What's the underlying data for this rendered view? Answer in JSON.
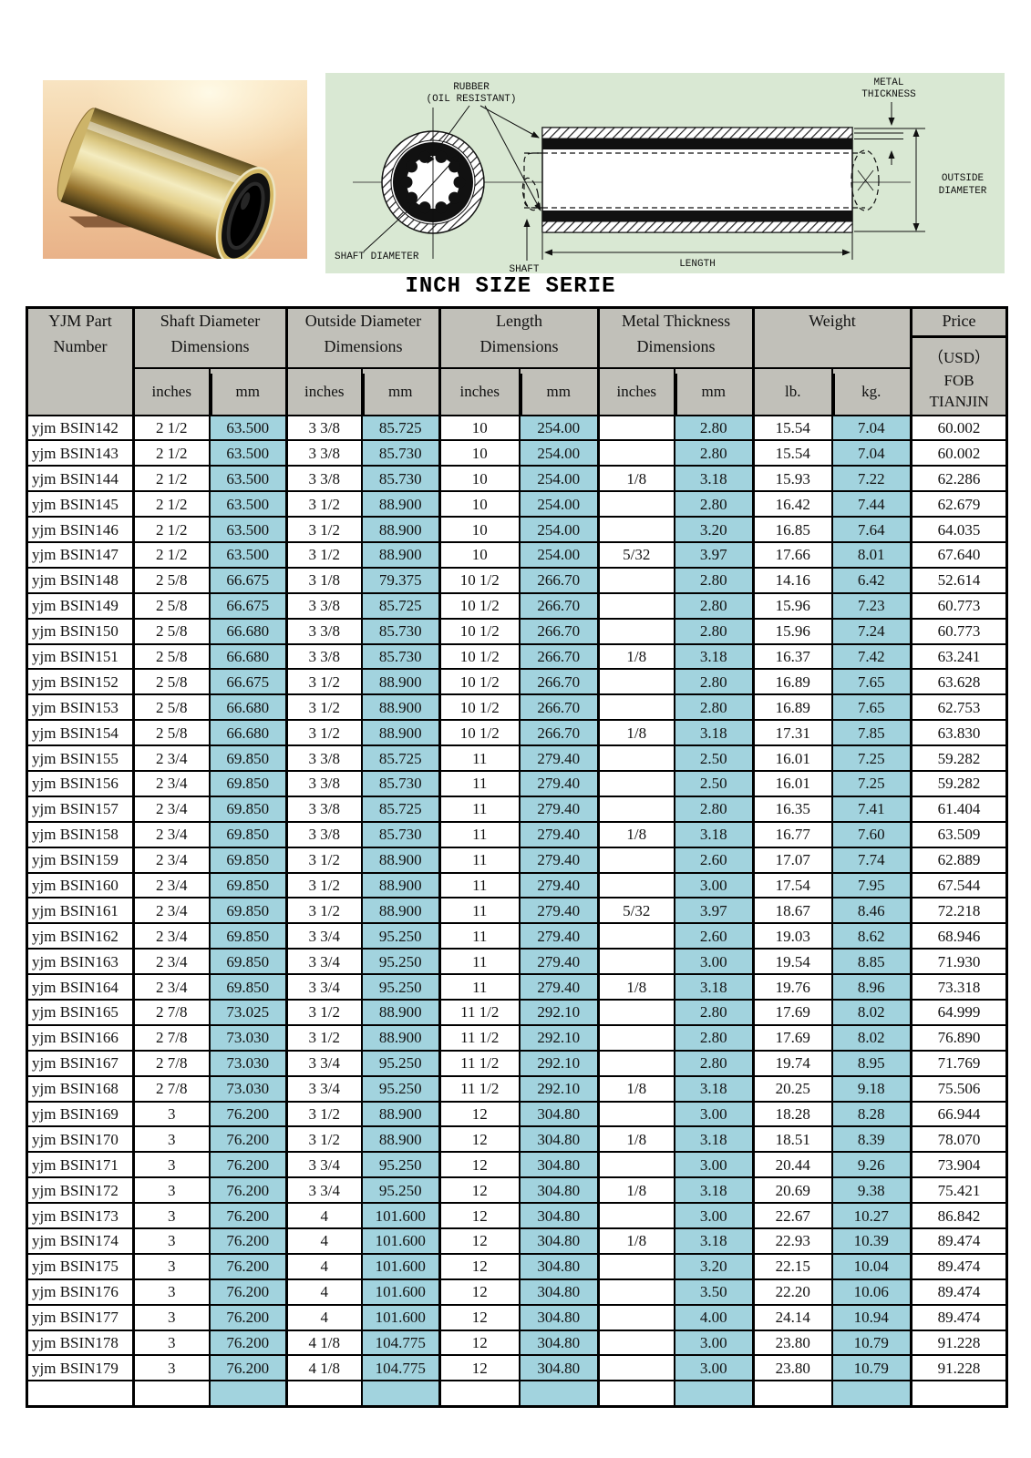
{
  "page": {
    "title": "INCH SIZE SERIE"
  },
  "colors": {
    "teal_cell": "#a2d3de",
    "header_grey": "#c1c0b9",
    "diagram_background": "#d9e8d3",
    "border": "#000000"
  },
  "diagram": {
    "labels": {
      "rubber": [
        "RUBBER",
        "(OIL RESISTANT)"
      ],
      "metal_thickness": [
        "METAL",
        "THICKNESS"
      ],
      "outside_diameter": [
        "OUTSIDE",
        "DIAMETER"
      ],
      "shaft_diameter": "SHAFT DIAMETER",
      "shaft": "SHAFT",
      "length": "LENGTH"
    }
  },
  "table": {
    "header": {
      "part_line1": "YJM Part",
      "part_line2": "Number",
      "groups": [
        {
          "label": "Shaft Diameter",
          "sub": "Dimensions",
          "units": [
            "inches",
            "mm"
          ]
        },
        {
          "label": "Outside Diameter",
          "sub": "Dimensions",
          "units": [
            "inches",
            "mm"
          ]
        },
        {
          "label": "Length",
          "sub": "Dimensions",
          "units": [
            "inches",
            "mm"
          ]
        },
        {
          "label": "Metal Thickness",
          "sub": "Dimensions",
          "units": [
            "inches",
            "mm"
          ]
        },
        {
          "label": "Weight",
          "sub": "",
          "units": [
            "lb.",
            "kg."
          ]
        }
      ],
      "price": {
        "label": "Price",
        "usd": "（USD）",
        "fob1": "FOB",
        "fob2": "TIANJIN"
      }
    },
    "rows": [
      [
        "yjm BSIN142",
        "2 1/2",
        "63.500",
        "3 3/8",
        "85.725",
        "10",
        "254.00",
        "",
        "2.80",
        "15.54",
        "7.04",
        "60.002"
      ],
      [
        "yjm BSIN143",
        "2 1/2",
        "63.500",
        "3 3/8",
        "85.730",
        "10",
        "254.00",
        "",
        "2.80",
        "15.54",
        "7.04",
        "60.002"
      ],
      [
        "yjm BSIN144",
        "2 1/2",
        "63.500",
        "3 3/8",
        "85.730",
        "10",
        "254.00",
        "1/8",
        "3.18",
        "15.93",
        "7.22",
        "62.286"
      ],
      [
        "yjm BSIN145",
        "2 1/2",
        "63.500",
        "3 1/2",
        "88.900",
        "10",
        "254.00",
        "",
        "2.80",
        "16.42",
        "7.44",
        "62.679"
      ],
      [
        "yjm BSIN146",
        "2 1/2",
        "63.500",
        "3 1/2",
        "88.900",
        "10",
        "254.00",
        "",
        "3.20",
        "16.85",
        "7.64",
        "64.035"
      ],
      [
        "yjm BSIN147",
        "2 1/2",
        "63.500",
        "3 1/2",
        "88.900",
        "10",
        "254.00",
        "5/32",
        "3.97",
        "17.66",
        "8.01",
        "67.640"
      ],
      [
        "yjm BSIN148",
        "2 5/8",
        "66.675",
        "3 1/8",
        "79.375",
        "10 1/2",
        "266.70",
        "",
        "2.80",
        "14.16",
        "6.42",
        "52.614"
      ],
      [
        "yjm BSIN149",
        "2 5/8",
        "66.675",
        "3 3/8",
        "85.725",
        "10 1/2",
        "266.70",
        "",
        "2.80",
        "15.96",
        "7.23",
        "60.773"
      ],
      [
        "yjm BSIN150",
        "2 5/8",
        "66.680",
        "3 3/8",
        "85.730",
        "10 1/2",
        "266.70",
        "",
        "2.80",
        "15.96",
        "7.24",
        "60.773"
      ],
      [
        "yjm BSIN151",
        "2 5/8",
        "66.680",
        "3 3/8",
        "85.730",
        "10 1/2",
        "266.70",
        "1/8",
        "3.18",
        "16.37",
        "7.42",
        "63.241"
      ],
      [
        "yjm BSIN152",
        "2 5/8",
        "66.675",
        "3 1/2",
        "88.900",
        "10 1/2",
        "266.70",
        "",
        "2.80",
        "16.89",
        "7.65",
        "63.628"
      ],
      [
        "yjm BSIN153",
        "2 5/8",
        "66.680",
        "3 1/2",
        "88.900",
        "10 1/2",
        "266.70",
        "",
        "2.80",
        "16.89",
        "7.65",
        "62.753"
      ],
      [
        "yjm BSIN154",
        "2 5/8",
        "66.680",
        "3 1/2",
        "88.900",
        "10 1/2",
        "266.70",
        "1/8",
        "3.18",
        "17.31",
        "7.85",
        "63.830"
      ],
      [
        "yjm BSIN155",
        "2 3/4",
        "69.850",
        "3 3/8",
        "85.725",
        "11",
        "279.40",
        "",
        "2.50",
        "16.01",
        "7.25",
        "59.282"
      ],
      [
        "yjm BSIN156",
        "2 3/4",
        "69.850",
        "3 3/8",
        "85.730",
        "11",
        "279.40",
        "",
        "2.50",
        "16.01",
        "7.25",
        "59.282"
      ],
      [
        "yjm BSIN157",
        "2 3/4",
        "69.850",
        "3 3/8",
        "85.725",
        "11",
        "279.40",
        "",
        "2.80",
        "16.35",
        "7.41",
        "61.404"
      ],
      [
        "yjm BSIN158",
        "2 3/4",
        "69.850",
        "3 3/8",
        "85.730",
        "11",
        "279.40",
        "1/8",
        "3.18",
        "16.77",
        "7.60",
        "63.509"
      ],
      [
        "yjm BSIN159",
        "2 3/4",
        "69.850",
        "3 1/2",
        "88.900",
        "11",
        "279.40",
        "",
        "2.60",
        "17.07",
        "7.74",
        "62.889"
      ],
      [
        "yjm BSIN160",
        "2 3/4",
        "69.850",
        "3 1/2",
        "88.900",
        "11",
        "279.40",
        "",
        "3.00",
        "17.54",
        "7.95",
        "67.544"
      ],
      [
        "yjm BSIN161",
        "2 3/4",
        "69.850",
        "3 1/2",
        "88.900",
        "11",
        "279.40",
        "5/32",
        "3.97",
        "18.67",
        "8.46",
        "72.218"
      ],
      [
        "yjm BSIN162",
        "2 3/4",
        "69.850",
        "3 3/4",
        "95.250",
        "11",
        "279.40",
        "",
        "2.60",
        "19.03",
        "8.62",
        "68.946"
      ],
      [
        "yjm BSIN163",
        "2 3/4",
        "69.850",
        "3 3/4",
        "95.250",
        "11",
        "279.40",
        "",
        "3.00",
        "19.54",
        "8.85",
        "71.930"
      ],
      [
        "yjm BSIN164",
        "2 3/4",
        "69.850",
        "3 3/4",
        "95.250",
        "11",
        "279.40",
        "1/8",
        "3.18",
        "19.76",
        "8.96",
        "73.318"
      ],
      [
        "yjm BSIN165",
        "2 7/8",
        "73.025",
        "3 1/2",
        "88.900",
        "11 1/2",
        "292.10",
        "",
        "2.80",
        "17.69",
        "8.02",
        "64.999"
      ],
      [
        "yjm BSIN166",
        "2 7/8",
        "73.030",
        "3 1/2",
        "88.900",
        "11 1/2",
        "292.10",
        "",
        "2.80",
        "17.69",
        "8.02",
        "76.890"
      ],
      [
        "yjm BSIN167",
        "2 7/8",
        "73.030",
        "3 3/4",
        "95.250",
        "11 1/2",
        "292.10",
        "",
        "2.80",
        "19.74",
        "8.95",
        "71.769"
      ],
      [
        "yjm BSIN168",
        "2 7/8",
        "73.030",
        "3 3/4",
        "95.250",
        "11 1/2",
        "292.10",
        "1/8",
        "3.18",
        "20.25",
        "9.18",
        "75.506"
      ],
      [
        "yjm BSIN169",
        "3",
        "76.200",
        "3 1/2",
        "88.900",
        "12",
        "304.80",
        "",
        "3.00",
        "18.28",
        "8.28",
        "66.944"
      ],
      [
        "yjm BSIN170",
        "3",
        "76.200",
        "3 1/2",
        "88.900",
        "12",
        "304.80",
        "1/8",
        "3.18",
        "18.51",
        "8.39",
        "78.070"
      ],
      [
        "yjm BSIN171",
        "3",
        "76.200",
        "3 3/4",
        "95.250",
        "12",
        "304.80",
        "",
        "3.00",
        "20.44",
        "9.26",
        "73.904"
      ],
      [
        "yjm BSIN172",
        "3",
        "76.200",
        "3 3/4",
        "95.250",
        "12",
        "304.80",
        "1/8",
        "3.18",
        "20.69",
        "9.38",
        "75.421"
      ],
      [
        "yjm BSIN173",
        "3",
        "76.200",
        "4",
        "101.600",
        "12",
        "304.80",
        "",
        "3.00",
        "22.67",
        "10.27",
        "86.842"
      ],
      [
        "yjm BSIN174",
        "3",
        "76.200",
        "4",
        "101.600",
        "12",
        "304.80",
        "1/8",
        "3.18",
        "22.93",
        "10.39",
        "89.474"
      ],
      [
        "yjm BSIN175",
        "3",
        "76.200",
        "4",
        "101.600",
        "12",
        "304.80",
        "",
        "3.20",
        "22.15",
        "10.04",
        "89.474"
      ],
      [
        "yjm BSIN176",
        "3",
        "76.200",
        "4",
        "101.600",
        "12",
        "304.80",
        "",
        "3.50",
        "22.20",
        "10.06",
        "89.474"
      ],
      [
        "yjm BSIN177",
        "3",
        "76.200",
        "4",
        "101.600",
        "12",
        "304.80",
        "",
        "4.00",
        "24.14",
        "10.94",
        "89.474"
      ],
      [
        "yjm BSIN178",
        "3",
        "76.200",
        "4 1/8",
        "104.775",
        "12",
        "304.80",
        "",
        "3.00",
        "23.80",
        "10.79",
        "91.228"
      ],
      [
        "yjm BSIN179",
        "3",
        "76.200",
        "4 1/8",
        "104.775",
        "12",
        "304.80",
        "",
        "3.00",
        "23.80",
        "10.79",
        "91.228"
      ],
      [
        "",
        "",
        "",
        "",
        "",
        "",
        "",
        "",
        "",
        "",
        "",
        ""
      ]
    ]
  }
}
